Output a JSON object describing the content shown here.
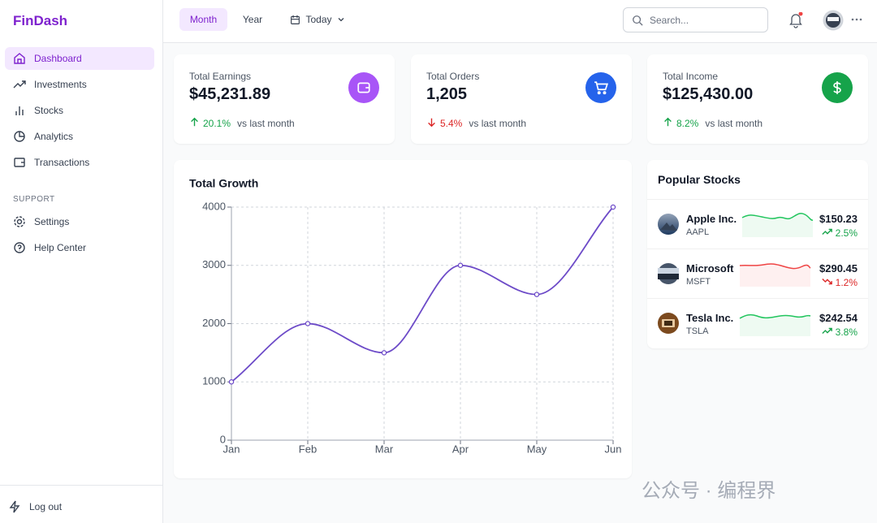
{
  "brand": "FinDash",
  "nav": {
    "items": [
      "Dashboard",
      "Investments",
      "Stocks",
      "Analytics",
      "Transactions"
    ],
    "support_heading": "SUPPORT",
    "support_items": [
      "Settings",
      "Help Center"
    ],
    "logout": "Log out"
  },
  "topbar": {
    "tabs": [
      "Month",
      "Year"
    ],
    "date_filter": "Today",
    "search_placeholder": "Search..."
  },
  "stats": [
    {
      "label": "Total Earnings",
      "value": "$45,231.89",
      "change": "20.1%",
      "trend": "up",
      "note": "vs last month"
    },
    {
      "label": "Total Orders",
      "value": "1,205",
      "change": "5.4%",
      "trend": "down",
      "note": "vs last month"
    },
    {
      "label": "Total Income",
      "value": "$125,430.00",
      "change": "8.2%",
      "trend": "up",
      "note": "vs last month"
    }
  ],
  "chart_data": {
    "type": "line",
    "title": "Total Growth",
    "categories": [
      "Jan",
      "Feb",
      "Mar",
      "Apr",
      "May",
      "Jun"
    ],
    "values": [
      1000,
      2000,
      1500,
      3000,
      2500,
      4000
    ],
    "color": "#6d4bc8",
    "ylim": [
      0,
      4000
    ],
    "yticks": [
      0,
      1000,
      2000,
      3000,
      4000
    ],
    "grid": true
  },
  "popular_stocks": {
    "title": "Popular Stocks",
    "items": [
      {
        "name": "Apple Inc.",
        "ticker": "AAPL",
        "price": "$150.23",
        "change": "2.5%",
        "trend": "up"
      },
      {
        "name": "Microsoft",
        "ticker": "MSFT",
        "price": "$290.45",
        "change": "1.2%",
        "trend": "down"
      },
      {
        "name": "Tesla Inc.",
        "ticker": "TSLA",
        "price": "$242.54",
        "change": "3.8%",
        "trend": "up"
      }
    ]
  },
  "watermark": "公众号 · 编程界"
}
